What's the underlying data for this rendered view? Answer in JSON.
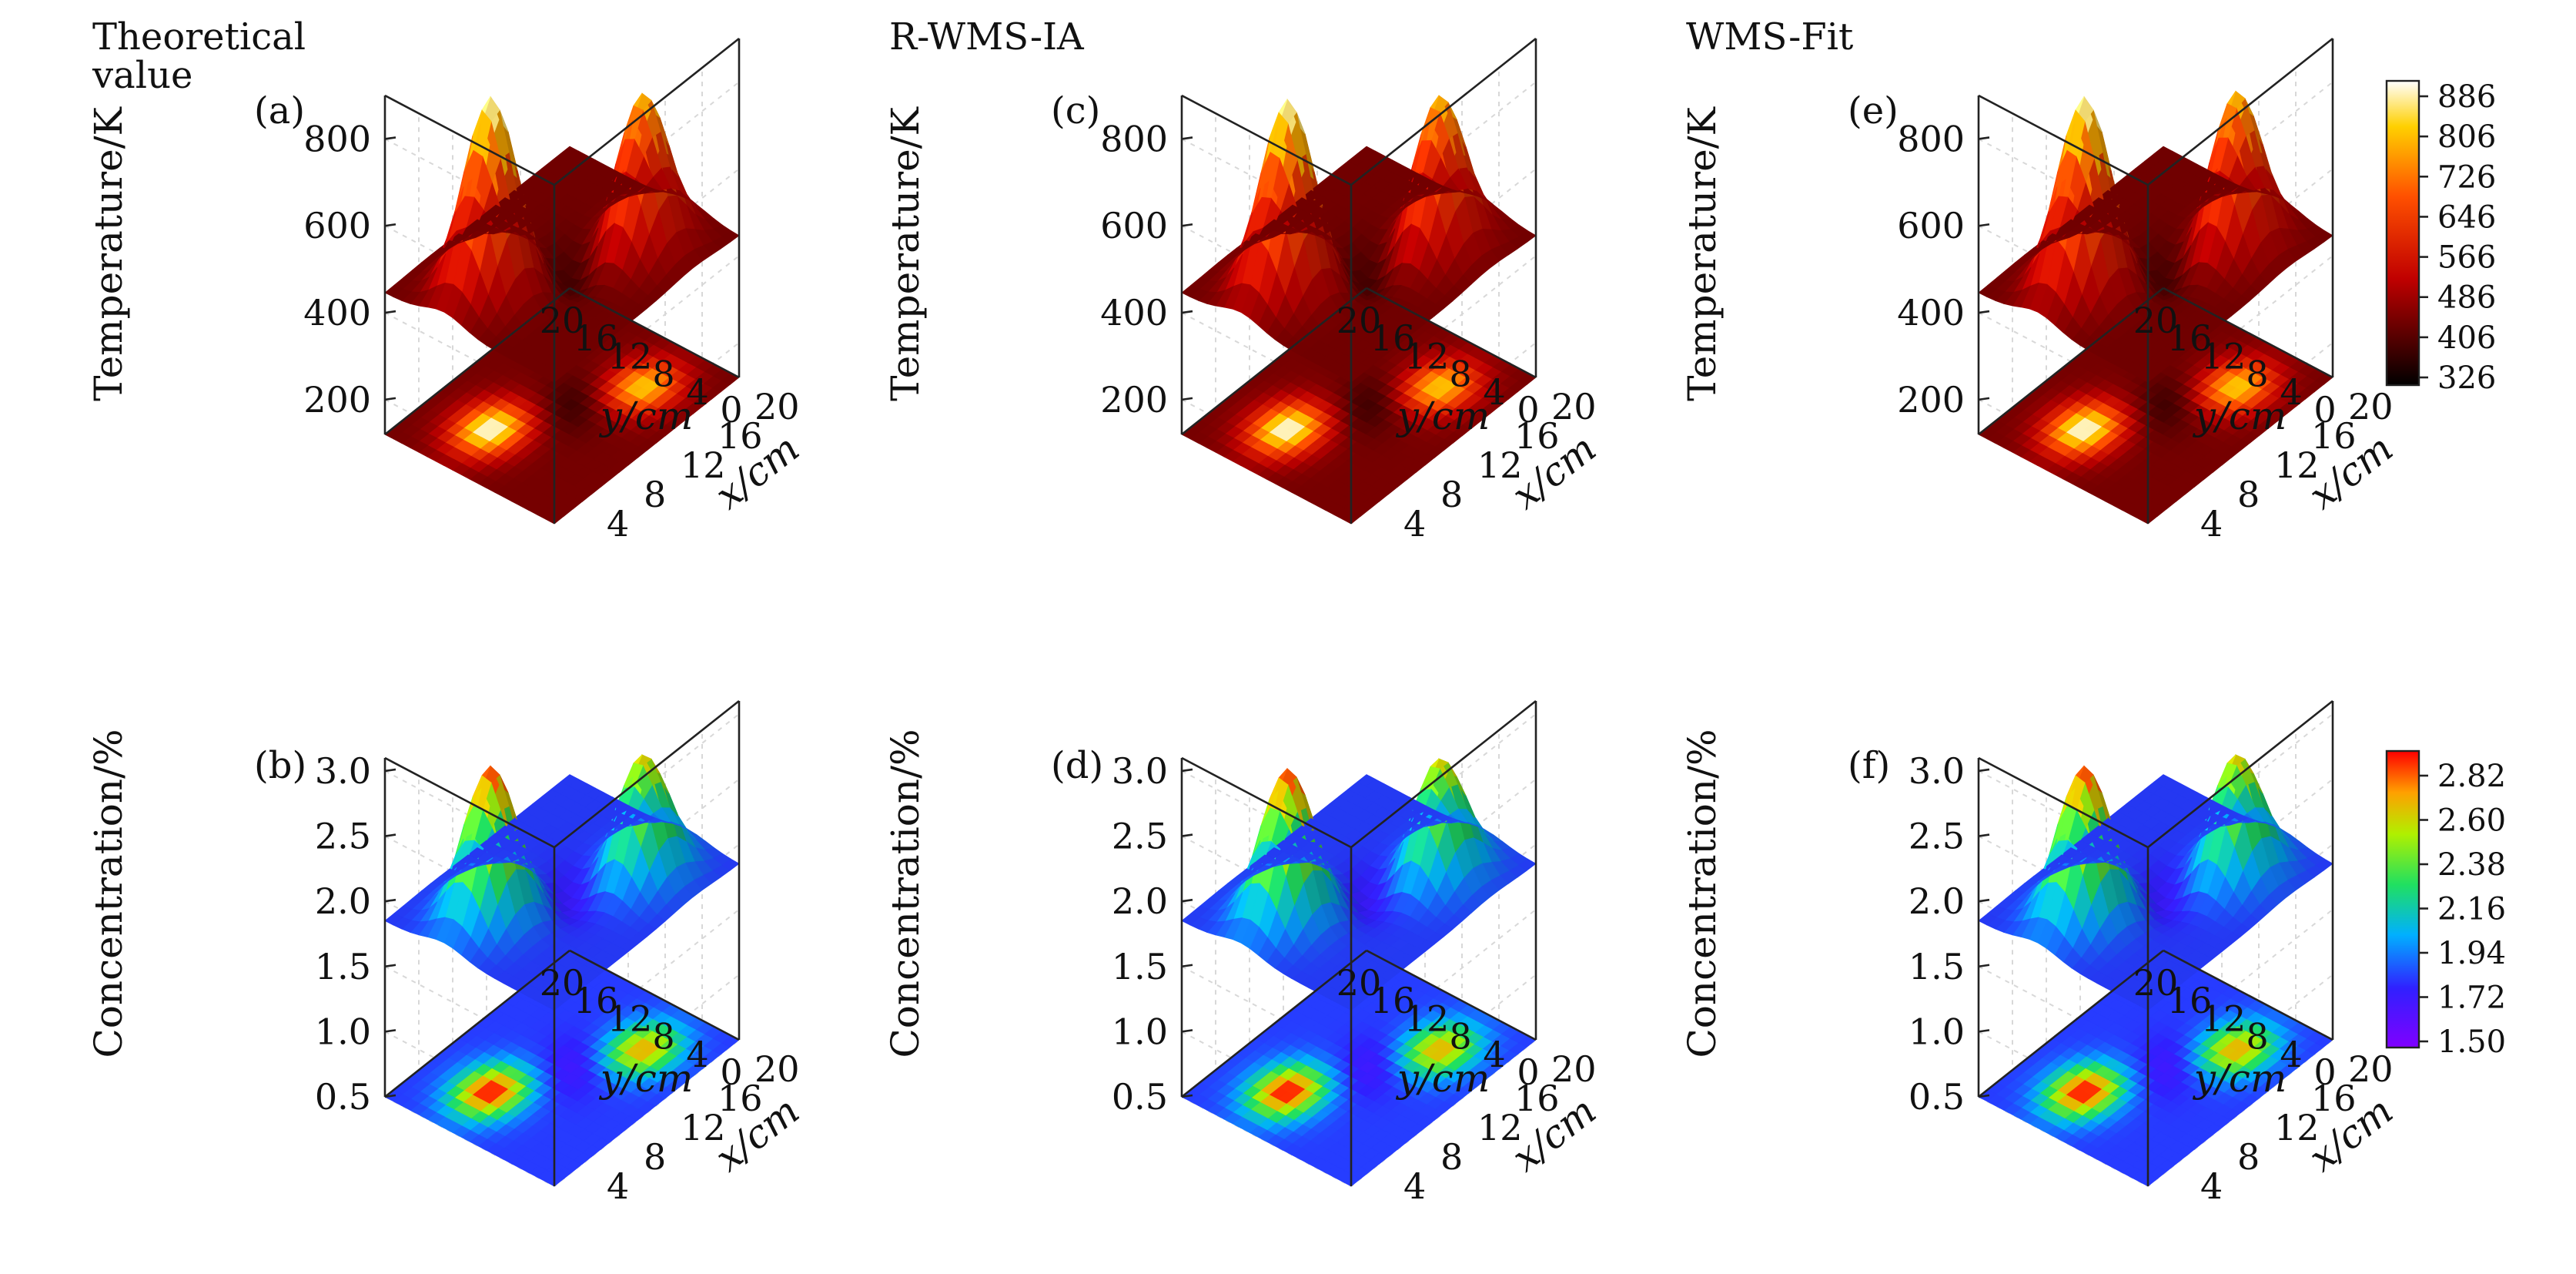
{
  "chart_data": [
    {
      "panel": "(a)",
      "type": "surface",
      "title": "Theoretical value",
      "variable": "temperature",
      "zlabel": "Temperature/K",
      "xlabel": "x/cm",
      "ylabel": "y/cm",
      "zticks": [
        "800",
        "600",
        "400",
        "200"
      ],
      "zlim": [
        120,
        900
      ],
      "yticks": [
        "20",
        "16",
        "12",
        "8",
        "4",
        "0"
      ],
      "xticks": [
        "4",
        "8",
        "12",
        "16",
        "20"
      ],
      "peaks": [
        {
          "x": 5,
          "y": 13,
          "value": 886
        },
        {
          "x": 15,
          "y": 6,
          "value": 805
        }
      ],
      "min_value": 326,
      "colorbar": []
    },
    {
      "panel": "(b)",
      "type": "surface",
      "title": "",
      "variable": "concentration",
      "zlabel": "Concentration/%",
      "xlabel": "x/cm",
      "ylabel": "y/cm",
      "zticks": [
        "3.0",
        "2.5",
        "2.0",
        "1.5",
        "1.0",
        "0.5"
      ],
      "zlim": [
        0.5,
        3.1
      ],
      "yticks": [
        "20",
        "16",
        "12",
        "8",
        "4",
        "0"
      ],
      "xticks": [
        "4",
        "8",
        "12",
        "16",
        "20"
      ],
      "peaks": [
        {
          "x": 5,
          "y": 13,
          "value": 3.0
        },
        {
          "x": 15,
          "y": 6,
          "value": 2.78
        }
      ],
      "min_value": 1.5,
      "colorbar": []
    },
    {
      "panel": "(c)",
      "type": "surface",
      "title": "R-WMS-IA",
      "variable": "temperature",
      "zlabel": "Temperature/K",
      "xlabel": "x/cm",
      "ylabel": "y/cm",
      "zticks": [
        "800",
        "600",
        "400",
        "200"
      ],
      "zlim": [
        120,
        900
      ],
      "yticks": [
        "20",
        "16",
        "12",
        "8",
        "4",
        "0"
      ],
      "xticks": [
        "4",
        "8",
        "12",
        "16",
        "20"
      ],
      "peaks": [
        {
          "x": 5,
          "y": 13,
          "value": 880
        },
        {
          "x": 15,
          "y": 6,
          "value": 800
        }
      ],
      "min_value": 326,
      "colorbar": []
    },
    {
      "panel": "(d)",
      "type": "surface",
      "title": "",
      "variable": "concentration",
      "zlabel": "Concentration/%",
      "xlabel": "x/cm",
      "ylabel": "y/cm",
      "zticks": [
        "3.0",
        "2.5",
        "2.0",
        "1.5",
        "1.0",
        "0.5"
      ],
      "zlim": [
        0.5,
        3.1
      ],
      "yticks": [
        "20",
        "16",
        "12",
        "8",
        "4",
        "0"
      ],
      "xticks": [
        "4",
        "8",
        "12",
        "16",
        "20"
      ],
      "peaks": [
        {
          "x": 5,
          "y": 13,
          "value": 2.98
        },
        {
          "x": 15,
          "y": 6,
          "value": 2.75
        }
      ],
      "min_value": 1.5,
      "colorbar": []
    },
    {
      "panel": "(e)",
      "type": "surface",
      "title": "WMS-Fit",
      "variable": "temperature",
      "zlabel": "Temperature/K",
      "xlabel": "x/cm",
      "ylabel": "y/cm",
      "zticks": [
        "800",
        "600",
        "400",
        "200"
      ],
      "zlim": [
        120,
        900
      ],
      "yticks": [
        "20",
        "16",
        "12",
        "8",
        "4",
        "0"
      ],
      "xticks": [
        "4",
        "8",
        "12",
        "16",
        "20"
      ],
      "peaks": [
        {
          "x": 5,
          "y": 13,
          "value": 886
        },
        {
          "x": 15,
          "y": 6,
          "value": 810
        }
      ],
      "min_value": 326,
      "colorbar": [
        "886",
        "806",
        "726",
        "646",
        "566",
        "486",
        "406",
        "326"
      ]
    },
    {
      "panel": "(f)",
      "type": "surface",
      "title": "",
      "variable": "concentration",
      "zlabel": "Concentration/%",
      "xlabel": "x/cm",
      "ylabel": "y/cm",
      "zticks": [
        "3.0",
        "2.5",
        "2.0",
        "1.5",
        "1.0",
        "0.5"
      ],
      "zlim": [
        0.5,
        3.1
      ],
      "yticks": [
        "20",
        "16",
        "12",
        "8",
        "4",
        "0"
      ],
      "xticks": [
        "4",
        "8",
        "12",
        "16",
        "20"
      ],
      "peaks": [
        {
          "x": 5,
          "y": 13,
          "value": 3.0
        },
        {
          "x": 15,
          "y": 6,
          "value": 2.78
        }
      ],
      "min_value": 1.5,
      "colorbar": [
        "2.82",
        "2.60",
        "2.38",
        "2.16",
        "1.94",
        "1.72",
        "1.50"
      ]
    }
  ]
}
